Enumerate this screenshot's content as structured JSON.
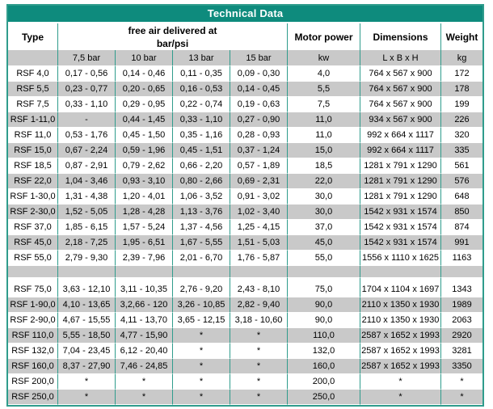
{
  "title": "Technical Data",
  "colors": {
    "accent_teal": "#0E8B7D",
    "border_teal": "#2F9C8C",
    "stripe_gray": "#C9C9C9",
    "title_text": "#FFFFFF",
    "body_text": "#000000"
  },
  "header": {
    "type_label": "Type",
    "free_air_line1": "free air delivered at",
    "free_air_line2": "bar/psi",
    "motor_power_label": "Motor power",
    "dimensions_label": "Dimensions",
    "weight_label": "Weight",
    "sub_type": "",
    "sub_bar75": "7,5 bar",
    "sub_bar10": "10 bar",
    "sub_bar13": "13 bar",
    "sub_bar15": "15 bar",
    "sub_kw": "kw",
    "sub_dim": "L x B x H",
    "sub_kg": "kg"
  },
  "rows": [
    {
      "shade": "white",
      "cells": [
        "RSF 4,0",
        "0,17 - 0,56",
        "0,14 - 0,46",
        "0,11 - 0,35",
        "0,09 - 0,30",
        "4,0",
        "764 x 567 x 900",
        "172"
      ]
    },
    {
      "shade": "gray",
      "cells": [
        "RSF 5,5",
        "0,23 - 0,77",
        "0,20 - 0,65",
        "0,16 - 0,53",
        "0,14 - 0,45",
        "5,5",
        "764 x 567 x 900",
        "178"
      ]
    },
    {
      "shade": "white",
      "cells": [
        "RSF 7,5",
        "0,33 - 1,10",
        "0,29 - 0,95",
        "0,22 - 0,74",
        "0,19 - 0,63",
        "7,5",
        "764 x 567 x 900",
        "199"
      ]
    },
    {
      "shade": "gray",
      "cells": [
        "RSF 1-11,0",
        "-",
        "0,44 - 1,45",
        "0,33 - 1,10",
        "0,27 - 0,90",
        "11,0",
        "934 x 567 x 900",
        "226"
      ]
    },
    {
      "shade": "white",
      "cells": [
        "RSF 11,0",
        "0,53 - 1,76",
        "0,45 - 1,50",
        "0,35 - 1,16",
        "0,28 - 0,93",
        "11,0",
        "992 x 664 x 1117",
        "320"
      ]
    },
    {
      "shade": "gray",
      "cells": [
        "RSF 15,0",
        "0,67 - 2,24",
        "0,59 - 1,96",
        "0,45 - 1,51",
        "0,37 - 1,24",
        "15,0",
        "992 x 664 x 1117",
        "335"
      ]
    },
    {
      "shade": "white",
      "cells": [
        "RSF 18,5",
        "0,87 - 2,91",
        "0,79 - 2,62",
        "0,66 - 2,20",
        "0,57 - 1,89",
        "18,5",
        "1281 x 791 x 1290",
        "561"
      ]
    },
    {
      "shade": "gray",
      "cells": [
        "RSF 22,0",
        "1,04 - 3,46",
        "0,93 - 3,10",
        "0,80 - 2,66",
        "0,69 - 2,31",
        "22,0",
        "1281 x 791 x 1290",
        "576"
      ]
    },
    {
      "shade": "white",
      "cells": [
        "RSF 1-30,0",
        "1,31 - 4,38",
        "1,20 - 4,01",
        "1,06 - 3,52",
        "0,91 - 3,02",
        "30,0",
        "1281 x 791 x 1290",
        "648"
      ]
    },
    {
      "shade": "gray",
      "cells": [
        "RSF 2-30,0",
        "1,52 - 5,05",
        "1,28 - 4,28",
        "1,13 - 3,76",
        "1,02 - 3,40",
        "30,0",
        "1542 x 931 x 1574",
        "850"
      ]
    },
    {
      "shade": "white",
      "cells": [
        "RSF 37,0",
        "1,85 - 6,15",
        "1,57 - 5,24",
        "1,37 - 4,56",
        "1,25 - 4,15",
        "37,0",
        "1542 x 931 x 1574",
        "874"
      ]
    },
    {
      "shade": "gray",
      "cells": [
        "RSF 45,0",
        "2,18 - 7,25",
        "1,95 - 6,51",
        "1,67 - 5,55",
        "1,51 - 5,03",
        "45,0",
        "1542 x 931 x 1574",
        "991"
      ]
    },
    {
      "shade": "white",
      "cells": [
        "RSF 55,0",
        "2,79 - 9,30",
        "2,39 - 7,96",
        "2,01 - 6,70",
        "1,76 - 5,87",
        "55,0",
        "1556 x 1110 x 1625",
        "1163"
      ]
    },
    {
      "shade": "gray",
      "kind": "empty",
      "cells": [
        "",
        "",
        "",
        "",
        "",
        "",
        "",
        ""
      ]
    },
    {
      "shade": "white",
      "kind": "spacer",
      "cells": [
        "",
        "",
        "",
        "",
        "",
        "",
        "",
        ""
      ]
    },
    {
      "shade": "white",
      "cells": [
        "RSF 75,0",
        "3,63 - 12,10",
        "3,11 - 10,35",
        "2,76 - 9,20",
        "2,43 - 8,10",
        "75,0",
        "1704 x 1104 x 1697",
        "1343"
      ]
    },
    {
      "shade": "gray",
      "cells": [
        "RSF 1-90,0",
        "4,10 - 13,65",
        "3,2,66 - 120",
        "3,26 - 10,85",
        "2,82 - 9,40",
        "90,0",
        "2110 x 1350 x 1930",
        "1989"
      ]
    },
    {
      "shade": "white",
      "cells": [
        "RSF 2-90,0",
        "4,67 - 15,55",
        "4,11 - 13,70",
        "3,65 - 12,15",
        "3,18 - 10,60",
        "90,0",
        "2110 x 1350 x 1930",
        "2063"
      ]
    },
    {
      "shade": "gray",
      "cells": [
        "RSF 110,0",
        "5,55 - 18,50",
        "4,77 - 15,90",
        "*",
        "*",
        "110,0",
        "2587 x 1652 x 1993",
        "2920"
      ]
    },
    {
      "shade": "white",
      "cells": [
        "RSF 132,0",
        "7,04 - 23,45",
        "6,12 - 20,40",
        "*",
        "*",
        "132,0",
        "2587 x 1652 x 1993",
        "3281"
      ]
    },
    {
      "shade": "gray",
      "cells": [
        "RSF 160,0",
        "8,37 - 27,90",
        "7,46 - 24,85",
        "*",
        "*",
        "160,0",
        "2587 x 1652 x 1993",
        "3350"
      ]
    },
    {
      "shade": "white",
      "cells": [
        "RSF 200,0",
        "*",
        "*",
        "*",
        "*",
        "200,0",
        "*",
        "*"
      ]
    },
    {
      "shade": "gray",
      "cells": [
        "RSF 250,0",
        "*",
        "*",
        "*",
        "*",
        "250,0",
        "*",
        "*"
      ]
    }
  ]
}
